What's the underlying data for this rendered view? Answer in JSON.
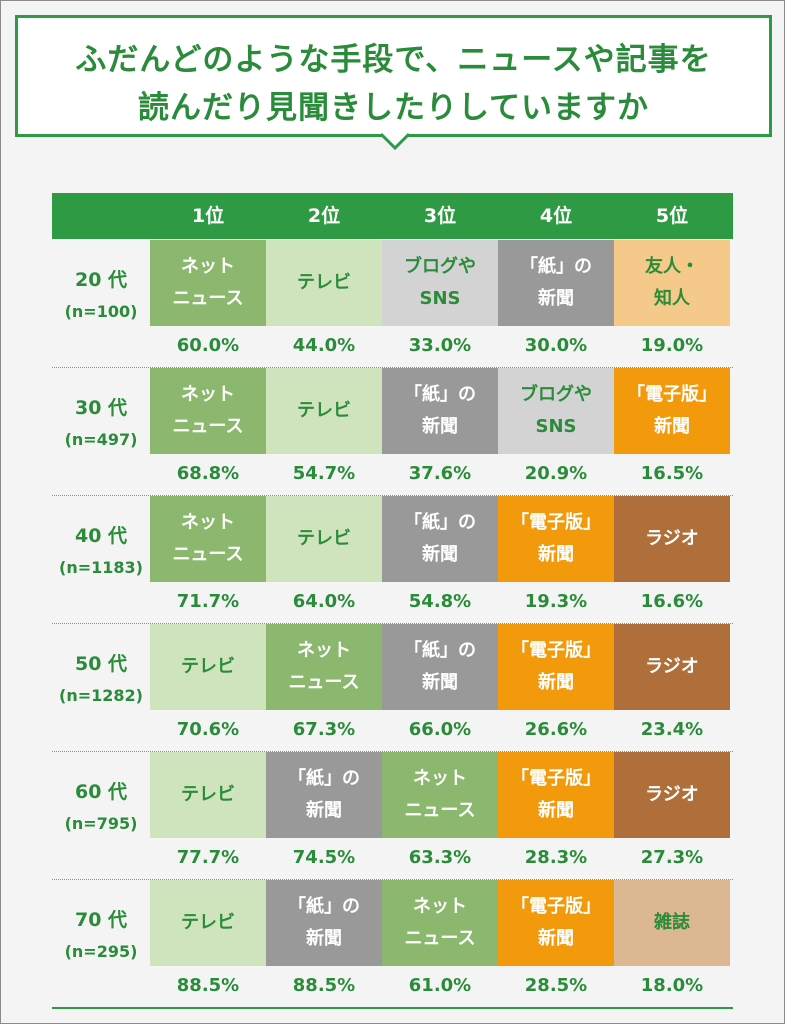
{
  "title": {
    "line1": "ふだんどのような手段で、ニュースや記事を",
    "line2": "読んだり見聞きしたりしていますか"
  },
  "colors": {
    "accent": "#2e9a43",
    "text_green": "#2a8c3a",
    "ネット ニュース": "#8bb86e",
    "テレビ": "#cfe3bd",
    "ブログやSNS": "#d3d3d3",
    "「紙」の新聞": "#999999",
    "友人・知人": "#f5c98a",
    "「電子版」新聞": "#f39a0c",
    "ラジオ": "#b06e3a",
    "雑誌": "#dcb892"
  },
  "chart_data": {
    "type": "table",
    "columns": [
      "1位",
      "2位",
      "3位",
      "4位",
      "5位"
    ],
    "rows": [
      {
        "age": "20 代",
        "n": "(n=100)",
        "items": [
          {
            "lines": [
              "ネット",
              "ニュース"
            ],
            "pct": "60.0%"
          },
          {
            "lines": [
              "テレビ"
            ],
            "pct": "44.0%"
          },
          {
            "lines": [
              "ブログや",
              "SNS"
            ],
            "pct": "33.0%"
          },
          {
            "lines": [
              "「紙」の",
              "新聞"
            ],
            "pct": "30.0%"
          },
          {
            "lines": [
              "友人・",
              "知人"
            ],
            "pct": "19.0%"
          }
        ]
      },
      {
        "age": "30 代",
        "n": "(n=497)",
        "items": [
          {
            "lines": [
              "ネット",
              "ニュース"
            ],
            "pct": "68.8%"
          },
          {
            "lines": [
              "テレビ"
            ],
            "pct": "54.7%"
          },
          {
            "lines": [
              "「紙」の",
              "新聞"
            ],
            "pct": "37.6%"
          },
          {
            "lines": [
              "ブログや",
              "SNS"
            ],
            "pct": "20.9%"
          },
          {
            "lines": [
              "「電子版」",
              "新聞"
            ],
            "pct": "16.5%"
          }
        ]
      },
      {
        "age": "40 代",
        "n": "(n=1183)",
        "items": [
          {
            "lines": [
              "ネット",
              "ニュース"
            ],
            "pct": "71.7%"
          },
          {
            "lines": [
              "テレビ"
            ],
            "pct": "64.0%"
          },
          {
            "lines": [
              "「紙」の",
              "新聞"
            ],
            "pct": "54.8%"
          },
          {
            "lines": [
              "「電子版」",
              "新聞"
            ],
            "pct": "19.3%"
          },
          {
            "lines": [
              "ラジオ"
            ],
            "pct": "16.6%"
          }
        ]
      },
      {
        "age": "50 代",
        "n": "(n=1282)",
        "items": [
          {
            "lines": [
              "テレビ"
            ],
            "pct": "70.6%"
          },
          {
            "lines": [
              "ネット",
              "ニュース"
            ],
            "pct": "67.3%"
          },
          {
            "lines": [
              "「紙」の",
              "新聞"
            ],
            "pct": "66.0%"
          },
          {
            "lines": [
              "「電子版」",
              "新聞"
            ],
            "pct": "26.6%"
          },
          {
            "lines": [
              "ラジオ"
            ],
            "pct": "23.4%"
          }
        ]
      },
      {
        "age": "60 代",
        "n": "(n=795)",
        "items": [
          {
            "lines": [
              "テレビ"
            ],
            "pct": "77.7%"
          },
          {
            "lines": [
              "「紙」の",
              "新聞"
            ],
            "pct": "74.5%"
          },
          {
            "lines": [
              "ネット",
              "ニュース"
            ],
            "pct": "63.3%"
          },
          {
            "lines": [
              "「電子版」",
              "新聞"
            ],
            "pct": "28.3%"
          },
          {
            "lines": [
              "ラジオ"
            ],
            "pct": "27.3%"
          }
        ]
      },
      {
        "age": "70 代",
        "n": "(n=295)",
        "items": [
          {
            "lines": [
              "テレビ"
            ],
            "pct": "88.5%"
          },
          {
            "lines": [
              "「紙」の",
              "新聞"
            ],
            "pct": "88.5%"
          },
          {
            "lines": [
              "ネット",
              "ニュース"
            ],
            "pct": "61.0%"
          },
          {
            "lines": [
              "「電子版」",
              "新聞"
            ],
            "pct": "28.5%"
          },
          {
            "lines": [
              "雑誌"
            ],
            "pct": "18.0%"
          }
        ]
      }
    ]
  }
}
